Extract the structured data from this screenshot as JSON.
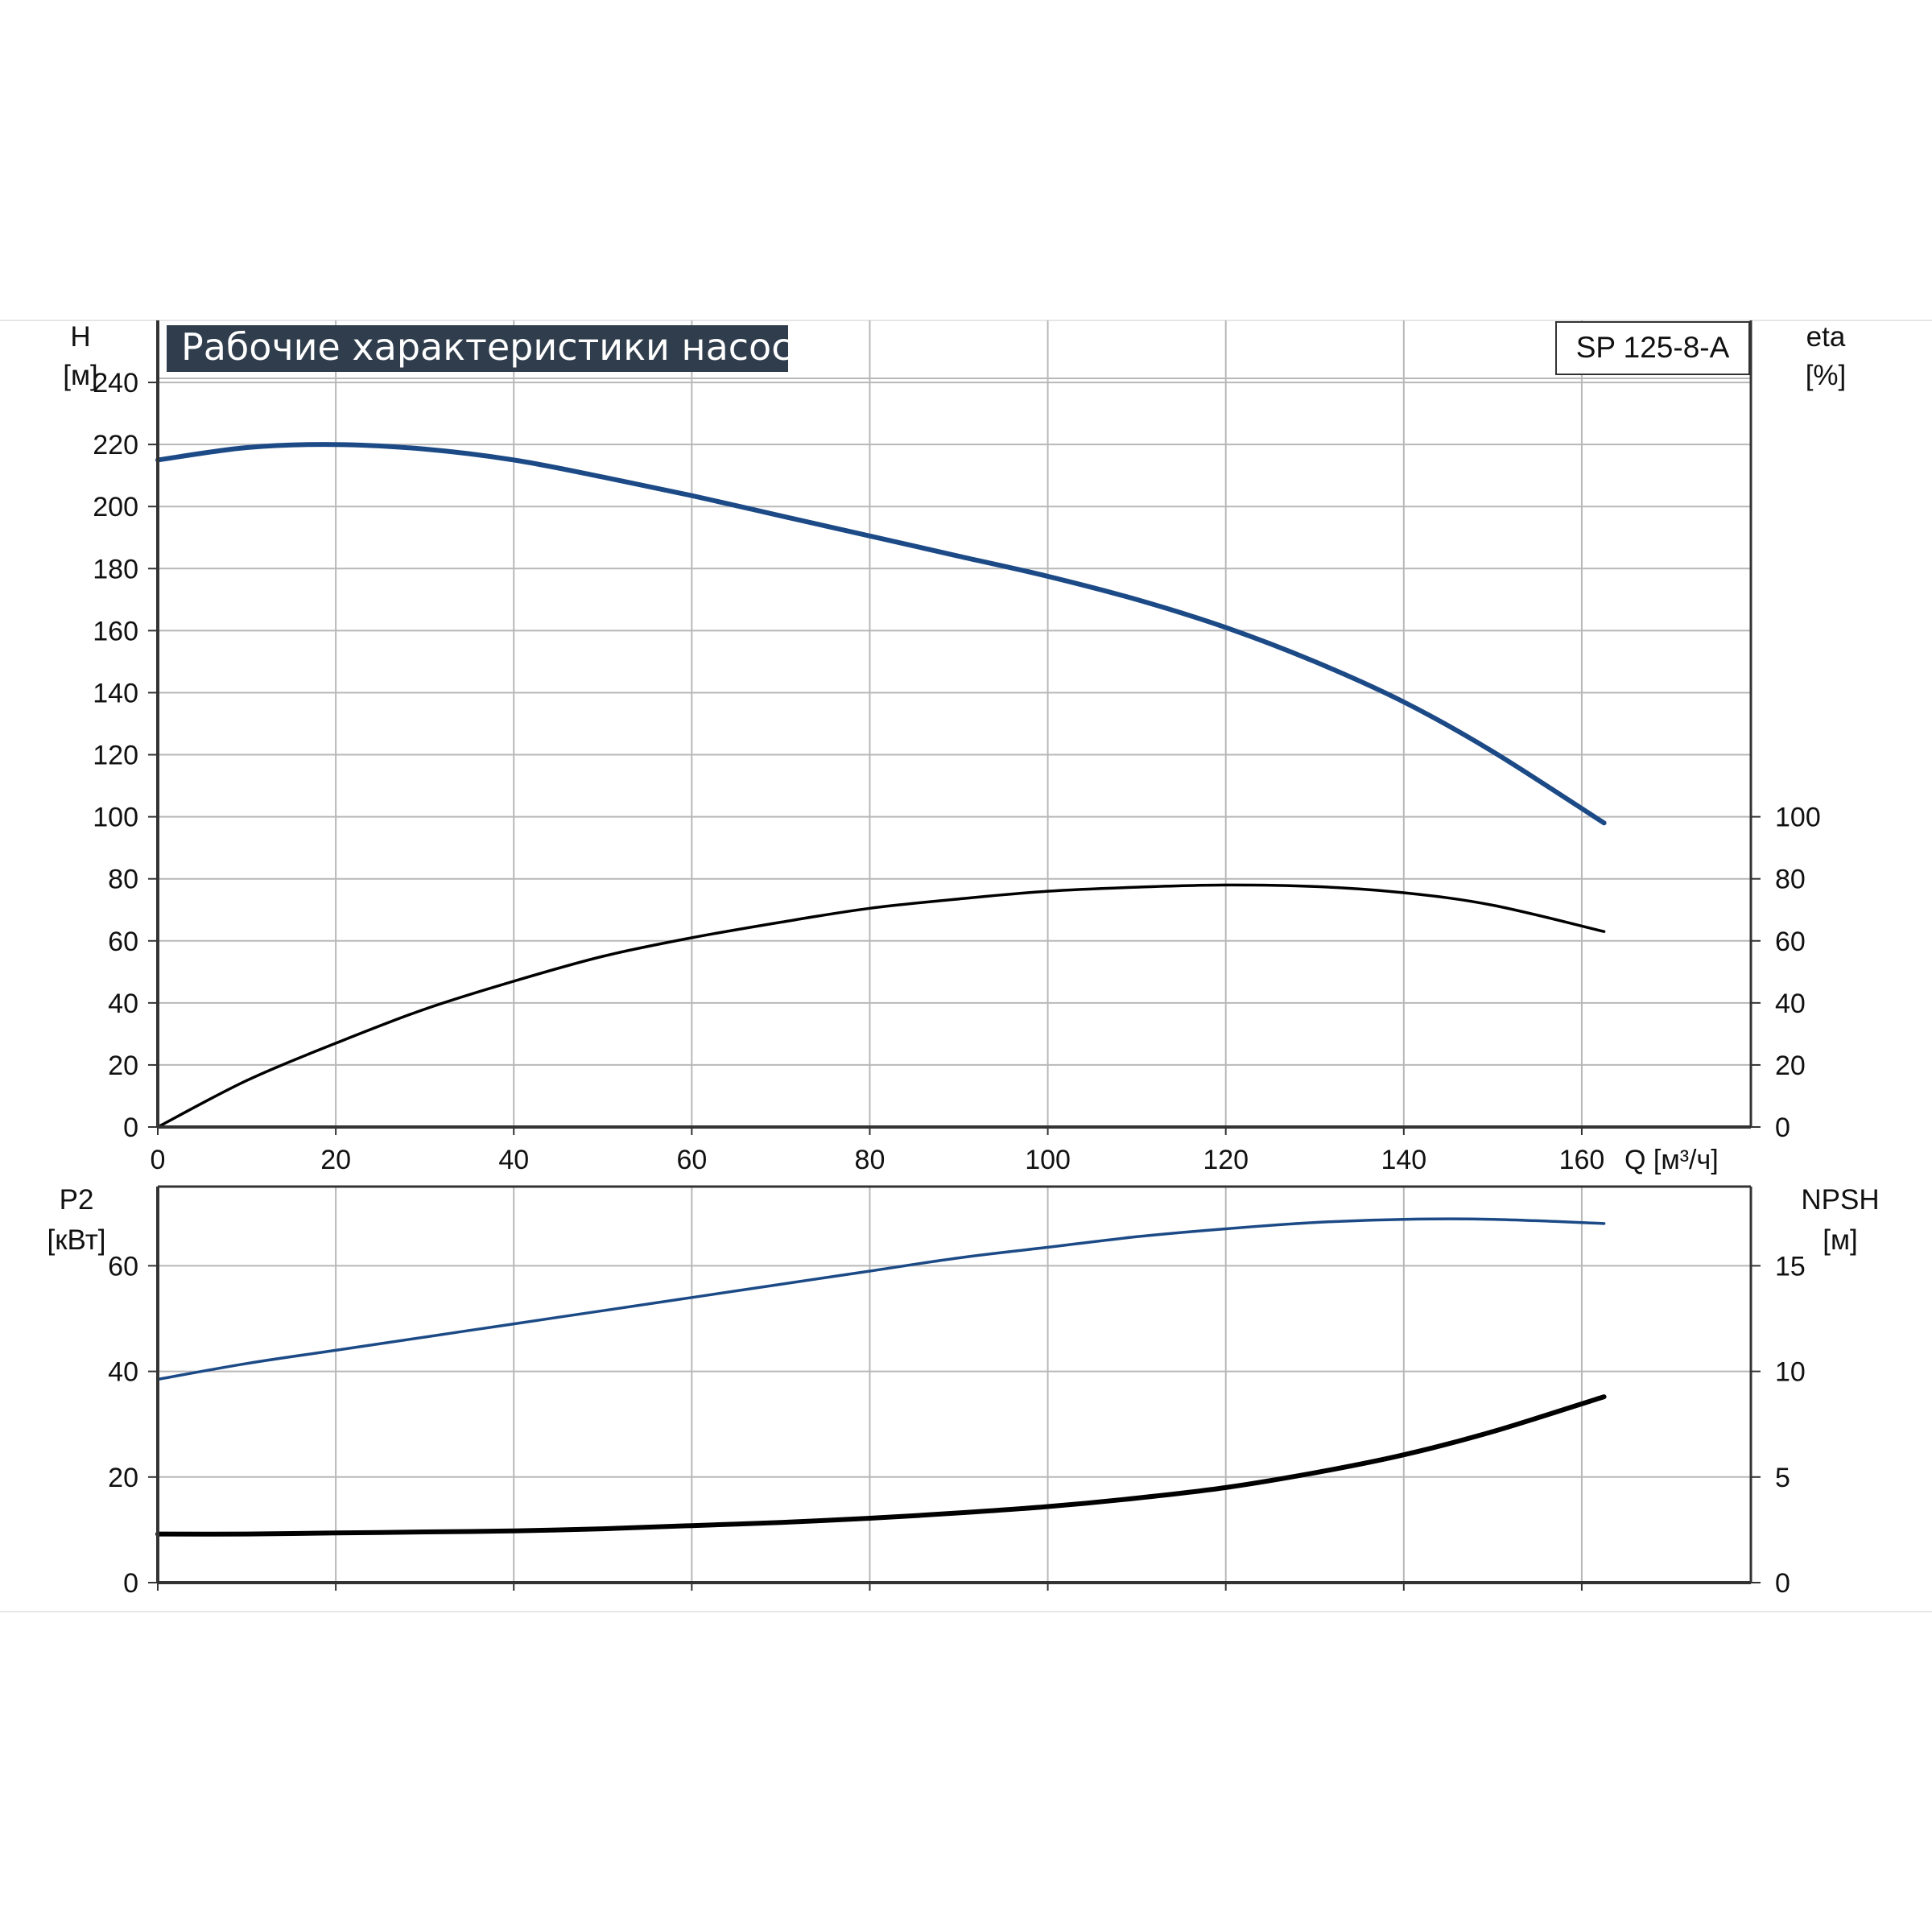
{
  "title": "Рабочие характеристики насоса",
  "model": "SP 125-8-A",
  "colors": {
    "curve_blue": "#1c4a86",
    "curve_black": "#000000",
    "grid": "#b8b8b8",
    "title_bg": "#2f3d4c",
    "title_text": "#ffffff"
  },
  "axes": {
    "h_label": "H",
    "h_unit": "[м]",
    "eta_label": "eta",
    "eta_unit": "[%]",
    "q_label": "Q [м³/ч]",
    "p2_label": "P2",
    "p2_unit": "[кВт]",
    "npsh_label": "NPSH",
    "npsh_unit": "[м]"
  },
  "chart_data": [
    {
      "type": "line",
      "name": "Рабочие характеристики насоса",
      "xlabel": "Q [м³/ч]",
      "xlim": [
        0,
        179
      ],
      "x_ticks": [
        0,
        20,
        40,
        60,
        80,
        100,
        120,
        140,
        160
      ],
      "left_axis": {
        "label": "H",
        "unit": "[м]",
        "ylim": [
          0,
          260
        ],
        "ticks": [
          0,
          20,
          40,
          60,
          80,
          100,
          120,
          140,
          160,
          180,
          200,
          220,
          240
        ]
      },
      "right_axis": {
        "label": "eta",
        "unit": "[%]",
        "ylim": [
          0,
          260
        ],
        "ticks": [
          0,
          20,
          40,
          60,
          80,
          100
        ]
      },
      "grid": true,
      "series": [
        {
          "axis": "left",
          "color": "#1c4a86",
          "points": [
            [
              0,
              215
            ],
            [
              10,
              219
            ],
            [
              20,
              220
            ],
            [
              30,
              218.5
            ],
            [
              40,
              215
            ],
            [
              50,
              209.5
            ],
            [
              60,
              203.5
            ],
            [
              70,
              197
            ],
            [
              80,
              190.5
            ],
            [
              90,
              184
            ],
            [
              100,
              177.5
            ],
            [
              110,
              170
            ],
            [
              120,
              161
            ],
            [
              130,
              150
            ],
            [
              140,
              137
            ],
            [
              150,
              121
            ],
            [
              162.5,
              98
            ]
          ]
        },
        {
          "axis": "right",
          "color": "#000000",
          "points": [
            [
              0,
              0
            ],
            [
              10,
              15
            ],
            [
              20,
              27
            ],
            [
              30,
              38
            ],
            [
              40,
              47
            ],
            [
              50,
              55
            ],
            [
              60,
              61
            ],
            [
              70,
              66
            ],
            [
              80,
              70.5
            ],
            [
              90,
              73.5
            ],
            [
              100,
              76
            ],
            [
              110,
              77.3
            ],
            [
              120,
              78
            ],
            [
              130,
              77.5
            ],
            [
              140,
              75.5
            ],
            [
              150,
              71.5
            ],
            [
              162.5,
              63
            ]
          ]
        }
      ]
    },
    {
      "type": "line",
      "xlim": [
        0,
        179
      ],
      "x_ticks": [
        0,
        20,
        40,
        60,
        80,
        100,
        120,
        140,
        160
      ],
      "left_axis": {
        "label": "P2",
        "unit": "[кВт]",
        "ylim": [
          0,
          75
        ],
        "ticks": [
          0,
          20,
          40,
          60
        ]
      },
      "right_axis": {
        "label": "NPSH",
        "unit": "[м]",
        "ylim": [
          0,
          18.75
        ],
        "ticks": [
          0,
          5,
          10,
          15
        ]
      },
      "grid": true,
      "series": [
        {
          "axis": "left",
          "color": "#1c4a86",
          "points": [
            [
              0,
              38.5
            ],
            [
              10,
              41.5
            ],
            [
              20,
              44
            ],
            [
              30,
              46.5
            ],
            [
              40,
              49
            ],
            [
              50,
              51.5
            ],
            [
              60,
              54
            ],
            [
              70,
              56.5
            ],
            [
              80,
              59
            ],
            [
              90,
              61.5
            ],
            [
              100,
              63.5
            ],
            [
              110,
              65.5
            ],
            [
              120,
              67
            ],
            [
              130,
              68.2
            ],
            [
              140,
              68.8
            ],
            [
              150,
              68.8
            ],
            [
              162.5,
              68
            ]
          ]
        },
        {
          "axis": "right",
          "color": "#000000",
          "points": [
            [
              0,
              2.3
            ],
            [
              10,
              2.3
            ],
            [
              20,
              2.35
            ],
            [
              30,
              2.4
            ],
            [
              40,
              2.45
            ],
            [
              50,
              2.55
            ],
            [
              60,
              2.7
            ],
            [
              70,
              2.85
            ],
            [
              80,
              3.05
            ],
            [
              90,
              3.3
            ],
            [
              100,
              3.6
            ],
            [
              110,
              4.0
            ],
            [
              120,
              4.5
            ],
            [
              130,
              5.2
            ],
            [
              140,
              6.05
            ],
            [
              150,
              7.15
            ],
            [
              162.5,
              8.8
            ]
          ]
        }
      ]
    }
  ]
}
